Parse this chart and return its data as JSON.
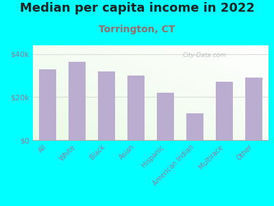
{
  "title": "Median per capita income in 2022",
  "subtitle": "Torrington, CT",
  "categories": [
    "All",
    "White",
    "Black",
    "Asian",
    "Hispanic",
    "American Indian",
    "Multirace",
    "Other"
  ],
  "values": [
    33000,
    36500,
    32000,
    30000,
    22000,
    12500,
    27000,
    29000
  ],
  "bar_color": "#baadd0",
  "background_color": "#00ffff",
  "title_fontsize": 13,
  "subtitle_fontsize": 10,
  "subtitle_color": "#9b6b6b",
  "title_color": "#222222",
  "ytick_labels": [
    "$0",
    "$20k",
    "$40k"
  ],
  "ytick_values": [
    0,
    20000,
    40000
  ],
  "ylim": [
    0,
    44000
  ],
  "watermark": "City-Data.com",
  "tick_color": "#997799",
  "spine_color": "#aaaaaa",
  "grid_color": "#cccccc"
}
